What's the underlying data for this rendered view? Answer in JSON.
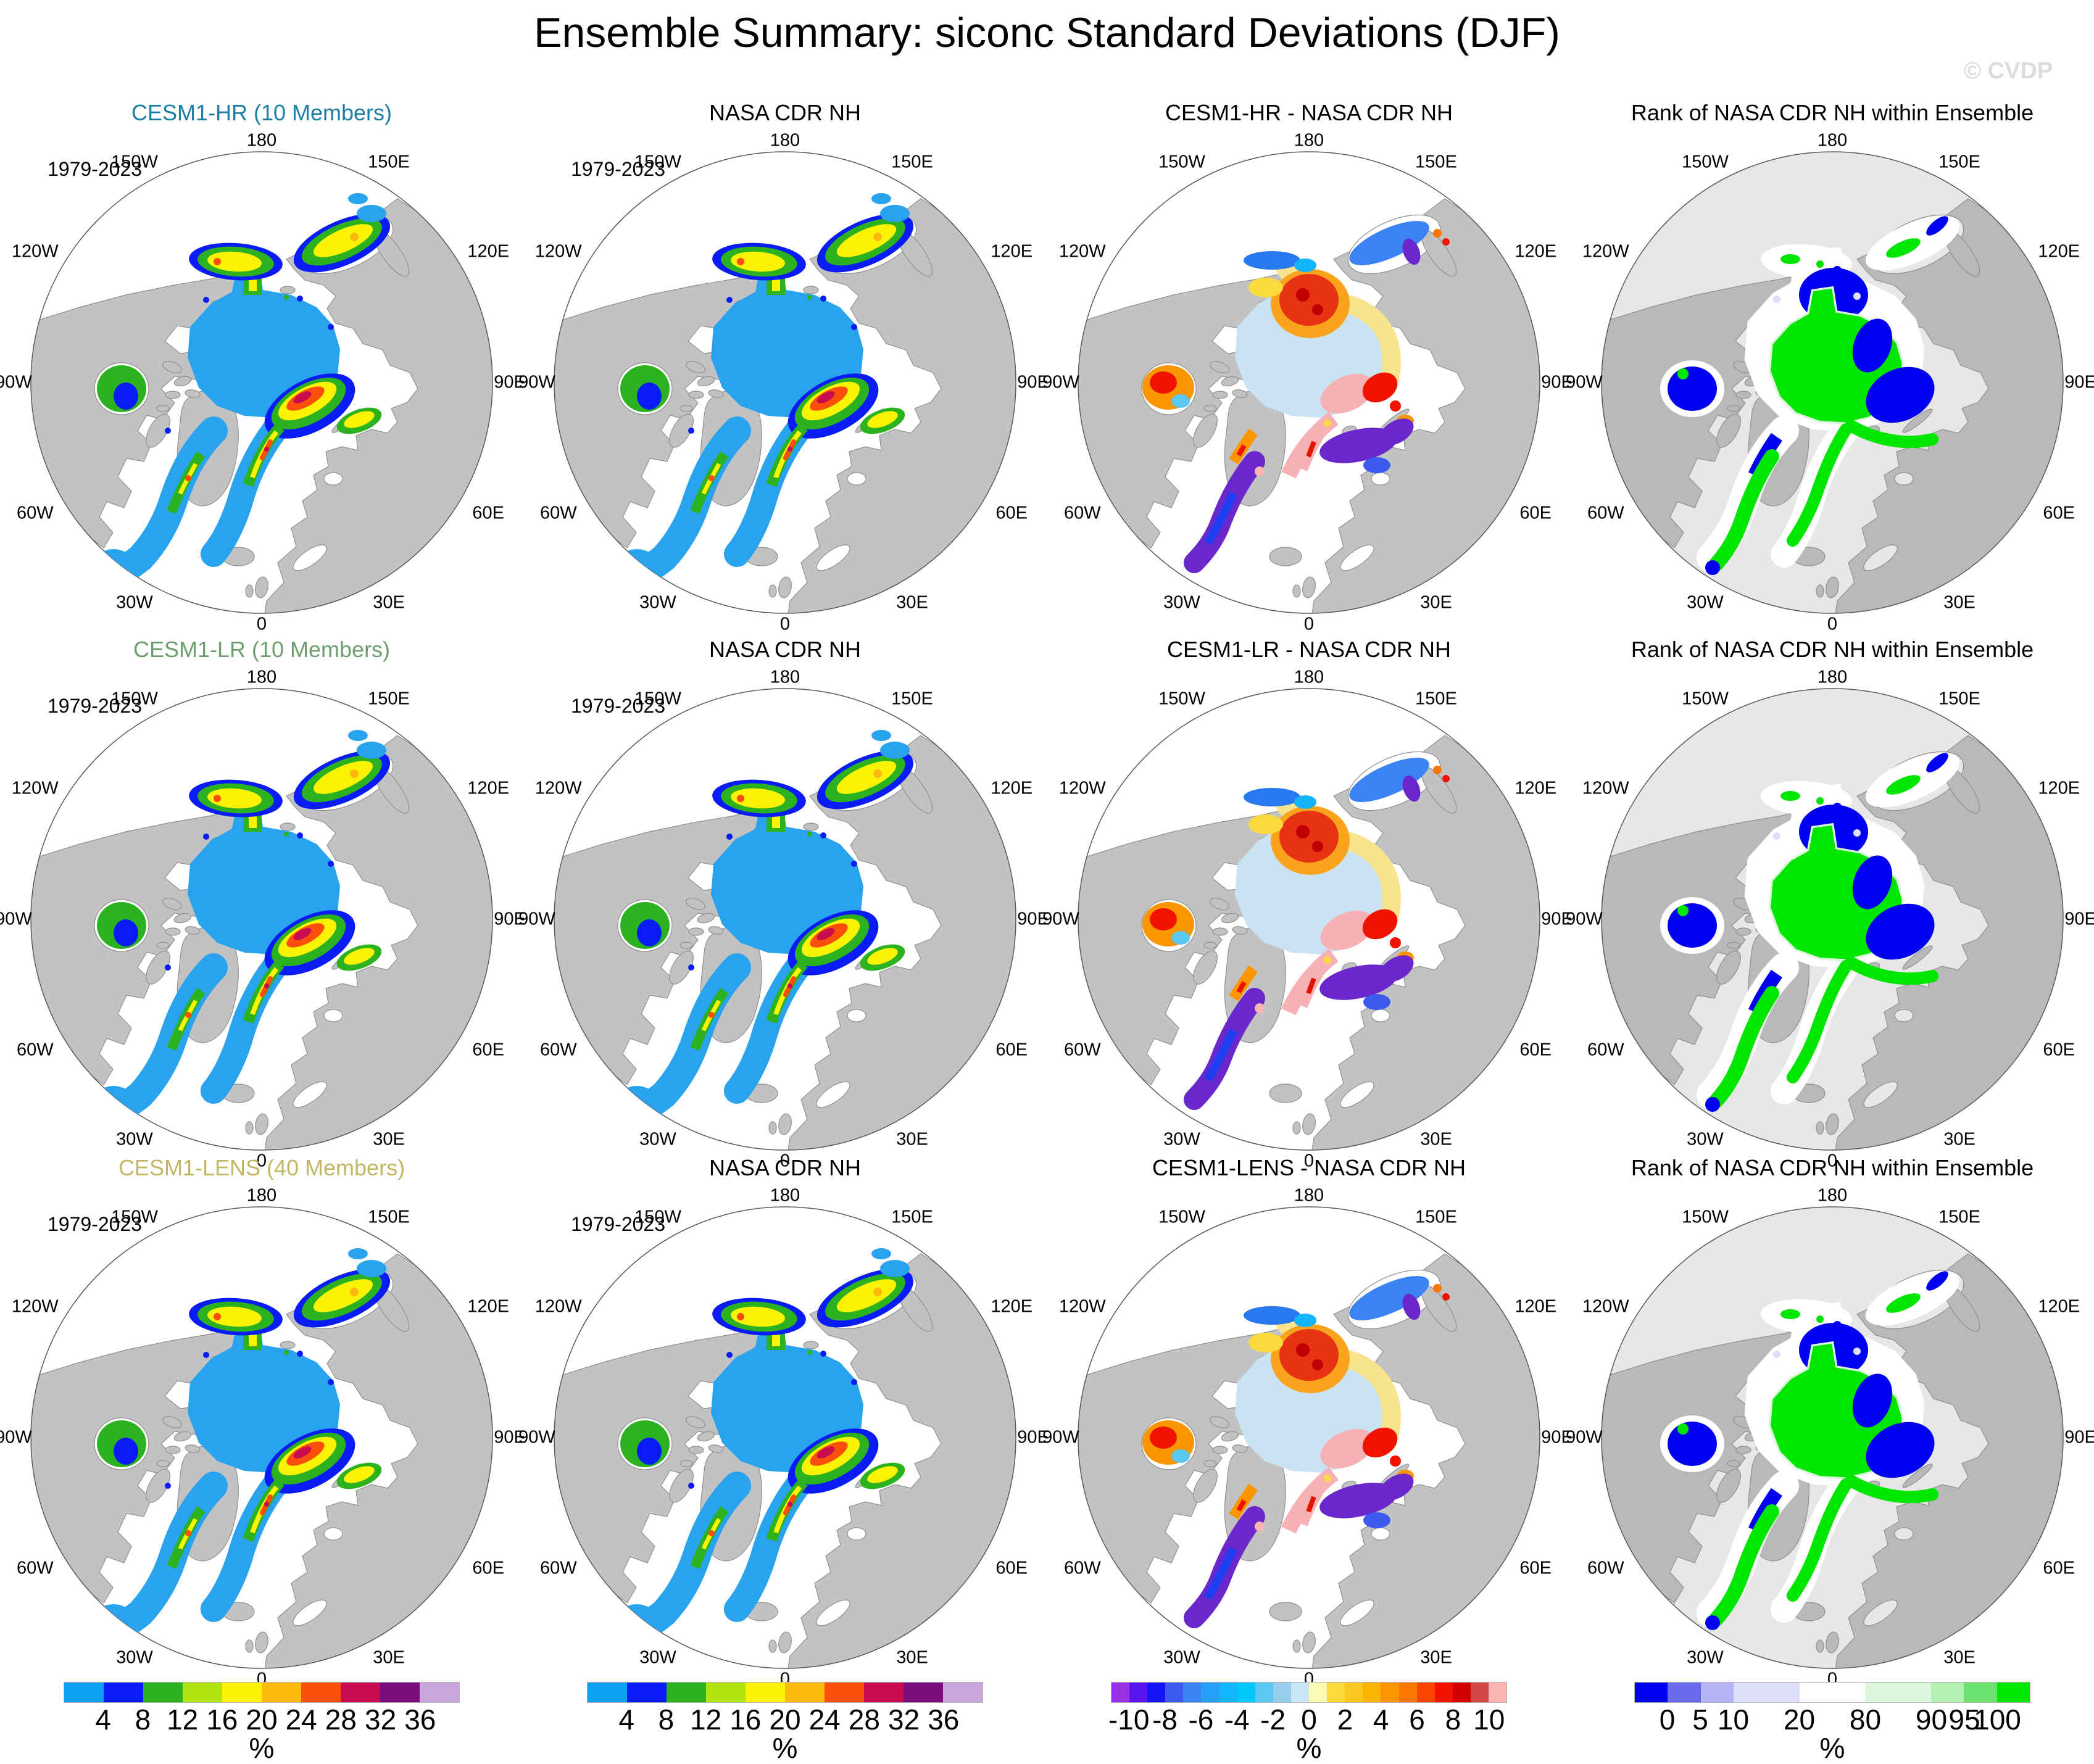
{
  "title": "Ensemble Summary: siconc Standard Deviations (DJF)",
  "watermark": "© CVDP",
  "year_range": "1979-2023",
  "lon_labels": [
    "180",
    "150W",
    "150E",
    "120W",
    "120E",
    "90W",
    "90E",
    "60W",
    "60E",
    "30W",
    "30E",
    "0"
  ],
  "rows": [
    {
      "color": "#1b7ea6",
      "panels": [
        "CESM1-HR (10 Members)",
        "NASA CDR NH",
        "CESM1-HR - NASA CDR NH",
        "Rank of NASA CDR NH within Ensemble"
      ]
    },
    {
      "color": "#6d9e6d",
      "panels": [
        "CESM1-LR (10 Members)",
        "NASA CDR NH",
        "CESM1-LR - NASA CDR NH",
        "Rank of NASA CDR NH within Ensemble"
      ]
    },
    {
      "color": "#c2b765",
      "panels": [
        "CESM1-LENS (40 Members)",
        "NASA CDR NH",
        "CESM1-LENS - NASA CDR NH",
        "Rank of NASA CDR NH within Ensemble"
      ]
    }
  ],
  "chart_data": {
    "type": "heatmap",
    "title": "Ensemble Summary: siconc Standard Deviations (DJF)",
    "period": "1979-2023",
    "projection": "north polar stereographic, 180 at top, 0 at bottom",
    "panel_titles": [
      [
        "CESM1-HR (10 Members)",
        "NASA CDR NH",
        "CESM1-HR - NASA CDR NH",
        "Rank of NASA CDR NH within Ensemble"
      ],
      [
        "CESM1-LR (10 Members)",
        "NASA CDR NH",
        "CESM1-LR - NASA CDR NH",
        "Rank of NASA CDR NH within Ensemble"
      ],
      [
        "CESM1-LENS (40 Members)",
        "NASA CDR NH",
        "CESM1-LENS - NASA CDR NH",
        "Rank of NASA CDR NH within Ensemble"
      ]
    ],
    "longitude_ring_labels": [
      "180",
      "150W",
      "150E",
      "120W",
      "120E",
      "90W",
      "90E",
      "60W",
      "60E",
      "30W",
      "30E",
      "0"
    ],
    "colorbars": [
      {
        "id": "std",
        "unit": "%",
        "ticks": [
          "4",
          "8",
          "12",
          "16",
          "20",
          "24",
          "28",
          "32",
          "36"
        ],
        "tick_positions": [
          1,
          2,
          3,
          4,
          5,
          6,
          7,
          8,
          9
        ],
        "segment_widths": [
          1,
          1,
          1,
          1,
          1,
          1,
          1,
          1,
          1,
          1
        ],
        "colors": [
          "#0aa1f0",
          "#0a1cf5",
          "#2cb21e",
          "#b2e413",
          "#fbf306",
          "#fdb80d",
          "#fc4f0b",
          "#c80c50",
          "#780c78",
          "#c8a8dc"
        ]
      },
      {
        "id": "diff",
        "unit": "%",
        "ticks": [
          "-10",
          "-8",
          "-6",
          "-4",
          "-2",
          "0",
          "2",
          "4",
          "6",
          "8",
          "10"
        ],
        "tick_positions": [
          1,
          3,
          5,
          7,
          9,
          11,
          13,
          15,
          17,
          19,
          21
        ],
        "segment_widths": [
          1,
          1,
          1,
          1,
          1,
          1,
          1,
          1,
          1,
          1,
          1,
          1,
          1,
          1,
          1,
          1,
          1,
          1,
          1,
          1,
          1,
          1
        ],
        "colors": [
          "#9632e1",
          "#5a14f0",
          "#1414f5",
          "#3c5af0",
          "#3c82f5",
          "#28a0fa",
          "#14b4fa",
          "#00c8fa",
          "#5ac8f0",
          "#96cde8",
          "#c8e6f5",
          "#fafab4",
          "#fada3c",
          "#fac81e",
          "#fab400",
          "#fa9600",
          "#fa7800",
          "#fa4600",
          "#f01400",
          "#d20000",
          "#d24646",
          "#fab4b4"
        ]
      },
      {
        "id": "rank",
        "unit": "%",
        "ticks": [
          "0",
          "5",
          "10",
          "20",
          "80",
          "90",
          "95",
          "100"
        ],
        "tick_positions": [
          1,
          2,
          3,
          5,
          7,
          9,
          10,
          11
        ],
        "segment_widths": [
          1,
          1,
          1,
          2,
          2,
          2,
          1,
          1,
          1
        ],
        "colors": [
          "#0000f0",
          "#6a6aee",
          "#b4b4f4",
          "#dedefa",
          "#ffffff",
          "#ddf7dd",
          "#b4f0b4",
          "#6ee26e",
          "#00e600"
        ]
      }
    ]
  }
}
